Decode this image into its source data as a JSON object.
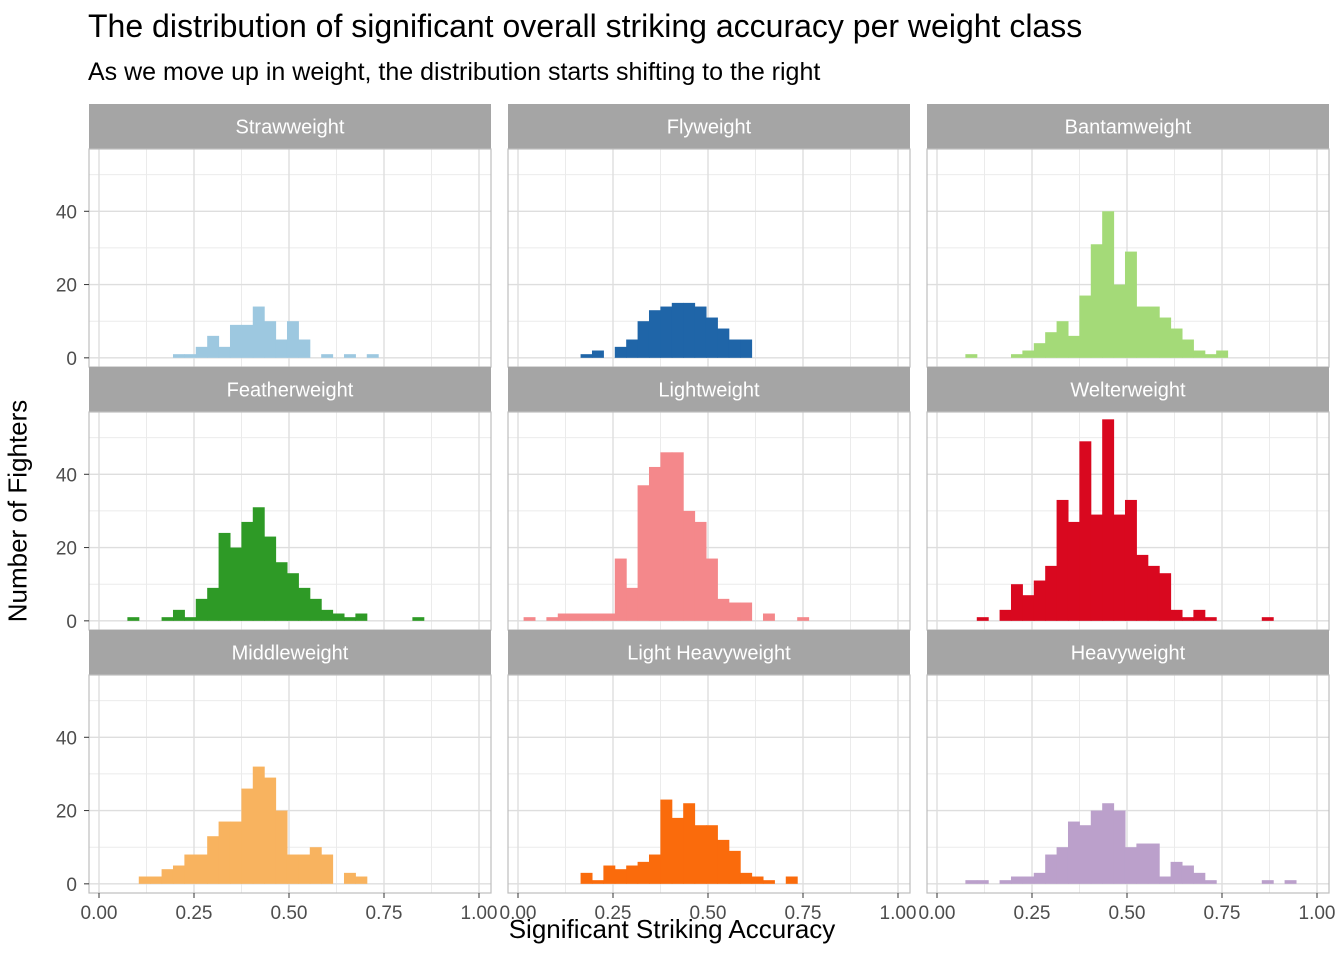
{
  "title": "The distribution of significant overall striking accuracy per weight class",
  "subtitle": "As we move up in weight, the distribution starts shifting to the right",
  "xlabel": "Significant Striking Accuracy",
  "ylabel": "Number of Fighters",
  "chart_data": {
    "type": "bar",
    "facet_type": "histogram",
    "xlim": [
      0,
      1
    ],
    "ylim": [
      -2.5,
      57
    ],
    "x_ticks": [
      0,
      0.25,
      0.5,
      0.75,
      1
    ],
    "x_tick_labels": [
      "0.00",
      "0.25",
      "0.50",
      "0.75",
      "1.00"
    ],
    "y_ticks": [
      0,
      20,
      40
    ],
    "y_tick_labels": [
      "0",
      "20",
      "40"
    ],
    "bin_width": 0.0306,
    "grid": true,
    "panels": [
      {
        "label": "Strawweight",
        "color": "#A6CEE3",
        "bars_opacity": 1,
        "fill": "#9DC8E0",
        "bins": [
          [
            0.21,
            1
          ],
          [
            0.24,
            1
          ],
          [
            0.27,
            3
          ],
          [
            0.3,
            6
          ],
          [
            0.33,
            3
          ],
          [
            0.36,
            9
          ],
          [
            0.39,
            9
          ],
          [
            0.42,
            14
          ],
          [
            0.45,
            10
          ],
          [
            0.48,
            5
          ],
          [
            0.51,
            10
          ],
          [
            0.54,
            5
          ],
          [
            0.6,
            1
          ],
          [
            0.66,
            1
          ],
          [
            0.72,
            1
          ]
        ]
      },
      {
        "label": "Flyweight",
        "fill": "#1F65A8",
        "bins": [
          [
            0.18,
            1
          ],
          [
            0.21,
            2
          ],
          [
            0.27,
            3
          ],
          [
            0.3,
            5
          ],
          [
            0.33,
            10
          ],
          [
            0.36,
            13
          ],
          [
            0.39,
            14
          ],
          [
            0.42,
            15
          ],
          [
            0.45,
            15
          ],
          [
            0.48,
            14
          ],
          [
            0.51,
            11
          ],
          [
            0.54,
            8
          ],
          [
            0.57,
            5
          ],
          [
            0.6,
            5
          ]
        ]
      },
      {
        "label": "Bantamweight",
        "fill": "#A4DA78",
        "bins": [
          [
            0.09,
            1
          ],
          [
            0.21,
            1
          ],
          [
            0.24,
            2
          ],
          [
            0.27,
            4
          ],
          [
            0.3,
            7
          ],
          [
            0.33,
            10
          ],
          [
            0.36,
            6
          ],
          [
            0.39,
            17
          ],
          [
            0.42,
            31
          ],
          [
            0.45,
            40
          ],
          [
            0.48,
            20
          ],
          [
            0.51,
            29
          ],
          [
            0.54,
            14
          ],
          [
            0.57,
            14
          ],
          [
            0.6,
            11
          ],
          [
            0.63,
            8
          ],
          [
            0.66,
            5
          ],
          [
            0.69,
            2
          ],
          [
            0.72,
            1
          ],
          [
            0.75,
            2
          ]
        ]
      },
      {
        "label": "Featherweight",
        "fill": "#2E9A26",
        "bins": [
          [
            0.09,
            1
          ],
          [
            0.18,
            1
          ],
          [
            0.21,
            3
          ],
          [
            0.24,
            1
          ],
          [
            0.27,
            6
          ],
          [
            0.3,
            9
          ],
          [
            0.33,
            24
          ],
          [
            0.36,
            20
          ],
          [
            0.39,
            27
          ],
          [
            0.42,
            31
          ],
          [
            0.45,
            23
          ],
          [
            0.48,
            16
          ],
          [
            0.51,
            13
          ],
          [
            0.54,
            9
          ],
          [
            0.57,
            6
          ],
          [
            0.6,
            3
          ],
          [
            0.63,
            2
          ],
          [
            0.66,
            1
          ],
          [
            0.69,
            2
          ],
          [
            0.84,
            1
          ]
        ]
      },
      {
        "label": "Lightweight",
        "fill": "#F4888B",
        "bins": [
          [
            0.03,
            1
          ],
          [
            0.09,
            1
          ],
          [
            0.12,
            2
          ],
          [
            0.15,
            2
          ],
          [
            0.18,
            2
          ],
          [
            0.21,
            2
          ],
          [
            0.24,
            2
          ],
          [
            0.27,
            17
          ],
          [
            0.3,
            9
          ],
          [
            0.33,
            37
          ],
          [
            0.36,
            42
          ],
          [
            0.39,
            46
          ],
          [
            0.42,
            46
          ],
          [
            0.45,
            30
          ],
          [
            0.48,
            27
          ],
          [
            0.51,
            17
          ],
          [
            0.54,
            6
          ],
          [
            0.57,
            5
          ],
          [
            0.6,
            5
          ],
          [
            0.66,
            2
          ],
          [
            0.75,
            1
          ]
        ]
      },
      {
        "label": "Welterweight",
        "fill": "#D9081F",
        "bins": [
          [
            0.12,
            1
          ],
          [
            0.18,
            3
          ],
          [
            0.21,
            10
          ],
          [
            0.24,
            7
          ],
          [
            0.27,
            11
          ],
          [
            0.3,
            15
          ],
          [
            0.33,
            33
          ],
          [
            0.36,
            27
          ],
          [
            0.39,
            49
          ],
          [
            0.42,
            29
          ],
          [
            0.45,
            55
          ],
          [
            0.48,
            29
          ],
          [
            0.51,
            33
          ],
          [
            0.54,
            18
          ],
          [
            0.57,
            15
          ],
          [
            0.6,
            13
          ],
          [
            0.63,
            3
          ],
          [
            0.66,
            1
          ],
          [
            0.69,
            3
          ],
          [
            0.72,
            1
          ],
          [
            0.87,
            1
          ]
        ]
      },
      {
        "label": "Middleweight",
        "fill": "#F8B35F",
        "bins": [
          [
            0.12,
            2
          ],
          [
            0.15,
            2
          ],
          [
            0.18,
            4
          ],
          [
            0.21,
            5
          ],
          [
            0.24,
            8
          ],
          [
            0.27,
            8
          ],
          [
            0.3,
            13
          ],
          [
            0.33,
            17
          ],
          [
            0.36,
            17
          ],
          [
            0.39,
            26
          ],
          [
            0.42,
            32
          ],
          [
            0.45,
            29
          ],
          [
            0.48,
            20
          ],
          [
            0.51,
            8
          ],
          [
            0.54,
            8
          ],
          [
            0.57,
            10
          ],
          [
            0.6,
            8
          ],
          [
            0.66,
            3
          ],
          [
            0.69,
            2
          ]
        ]
      },
      {
        "label": "Light Heavyweight",
        "fill": "#FA6B0C",
        "bins": [
          [
            0.18,
            3
          ],
          [
            0.21,
            1
          ],
          [
            0.24,
            5
          ],
          [
            0.27,
            4
          ],
          [
            0.3,
            5
          ],
          [
            0.33,
            6
          ],
          [
            0.36,
            8
          ],
          [
            0.39,
            23
          ],
          [
            0.42,
            18
          ],
          [
            0.45,
            22
          ],
          [
            0.48,
            16
          ],
          [
            0.51,
            16
          ],
          [
            0.54,
            12
          ],
          [
            0.57,
            9
          ],
          [
            0.6,
            3
          ],
          [
            0.63,
            2
          ],
          [
            0.66,
            1
          ],
          [
            0.72,
            2
          ]
        ]
      },
      {
        "label": "Heavyweight",
        "fill": "#BBA0CB",
        "bins": [
          [
            0.09,
            1
          ],
          [
            0.12,
            1
          ],
          [
            0.18,
            1
          ],
          [
            0.21,
            2
          ],
          [
            0.24,
            2
          ],
          [
            0.27,
            3
          ],
          [
            0.3,
            8
          ],
          [
            0.33,
            10
          ],
          [
            0.36,
            17
          ],
          [
            0.39,
            16
          ],
          [
            0.42,
            20
          ],
          [
            0.45,
            22
          ],
          [
            0.48,
            20
          ],
          [
            0.51,
            10
          ],
          [
            0.54,
            11
          ],
          [
            0.57,
            11
          ],
          [
            0.6,
            2
          ],
          [
            0.63,
            6
          ],
          [
            0.66,
            5
          ],
          [
            0.69,
            3
          ],
          [
            0.72,
            1
          ],
          [
            0.87,
            1
          ],
          [
            0.93,
            1
          ]
        ]
      }
    ]
  }
}
